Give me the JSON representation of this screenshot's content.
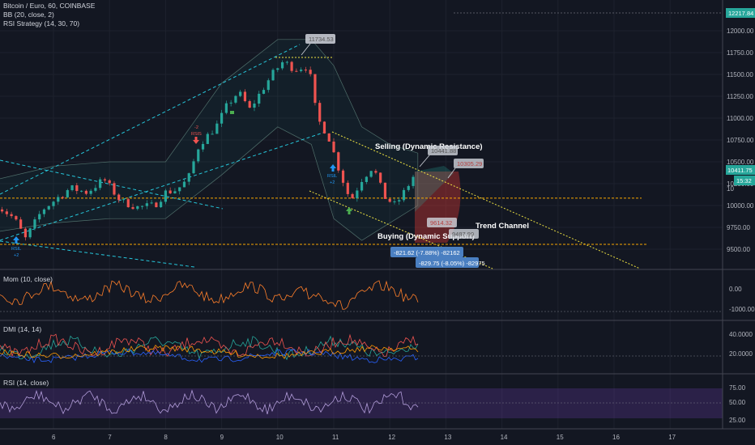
{
  "legend": {
    "symbol": "Bitcoin / Euro, 60, COINBASE",
    "bb": "BB (20, close, 2)",
    "rsi_strategy": "RSI Strategy (14, 30, 70)"
  },
  "panes": {
    "mom": "Mom (10, close)",
    "dmi": "DMI (14, 14)",
    "rsi": "RSI (14, close)"
  },
  "price_axis": {
    "top_badge": "12217.84",
    "ticks": [
      "12000.00",
      "11750.00",
      "11500.00",
      "11250.00",
      "11000.00",
      "10750.00",
      "10500.00",
      "10250.00",
      "10000.00",
      "9750.00",
      "9500.00"
    ],
    "current_price": "10411.75",
    "countdown": "15:32",
    "hidden_tick": "10"
  },
  "mom_axis": [
    "0.00",
    "-1000.00"
  ],
  "dmi_axis": [
    "40.0000",
    "20.0000"
  ],
  "rsi_axis": [
    "75.00",
    "50.00",
    "25.00"
  ],
  "time_axis": [
    "6",
    "7",
    "8",
    "9",
    "10",
    "11",
    "12",
    "13",
    "14",
    "15",
    "16",
    "17"
  ],
  "annotations": {
    "selling": "Selling (Dynamic Resistance)",
    "buying": "Buying (Dynamic Support)",
    "trend_channel": "Trend Channel"
  },
  "price_labels": {
    "high": "11734.53",
    "sell1": "10441.88",
    "sell2": "10305.29",
    "buy1": "9614.32",
    "buy2": "9487.99"
  },
  "measure": {
    "m1": "-821.62 (-7.88%) -82162",
    "m2": "-829.75 (-8.05%) -82975"
  },
  "signals": {
    "sell_label": "RSIS",
    "sell_count": "-2",
    "buy_label": "RSIL",
    "buy_count": "+2"
  },
  "colors": {
    "background": "#131722",
    "up": "#26a69a",
    "down": "#ef5350",
    "channel": "#26c6da",
    "trend": "#f0e442",
    "level": "#f7a600",
    "rsi_band": "#6a3cae",
    "blue_label": "#4a7fc1"
  },
  "chart_data": {
    "type": "candlestick",
    "symbol": "Bitcoin / Euro, 60, COINBASE",
    "x_ticks": [
      "6",
      "7",
      "8",
      "9",
      "10",
      "11",
      "12",
      "13",
      "14",
      "15",
      "16",
      "17"
    ],
    "y_ticks": [
      12000,
      11750,
      11500,
      11250,
      11000,
      10750,
      10500,
      10250,
      10000,
      9750,
      9500
    ],
    "ylim": [
      9350,
      12250
    ],
    "current_price": 10411.75,
    "price_path": [
      [
        5.0,
        10000
      ],
      [
        5.3,
        9850
      ],
      [
        5.5,
        9620
      ],
      [
        5.8,
        9950
      ],
      [
        6.0,
        10050
      ],
      [
        6.3,
        10200
      ],
      [
        6.6,
        10150
      ],
      [
        6.9,
        10300
      ],
      [
        7.2,
        10050
      ],
      [
        7.5,
        9980
      ],
      [
        7.8,
        10000
      ],
      [
        8.0,
        10150
      ],
      [
        8.2,
        10180
      ],
      [
        8.4,
        10300
      ],
      [
        8.6,
        10700
      ],
      [
        8.9,
        10900
      ],
      [
        9.1,
        11150
      ],
      [
        9.3,
        11300
      ],
      [
        9.5,
        11100
      ],
      [
        9.7,
        11300
      ],
      [
        9.9,
        11500
      ],
      [
        10.1,
        11650
      ],
      [
        10.3,
        11560
      ],
      [
        10.55,
        11600
      ],
      [
        10.7,
        11000
      ],
      [
        10.9,
        10800
      ],
      [
        11.1,
        10400
      ],
      [
        11.3,
        10050
      ],
      [
        11.5,
        10300
      ],
      [
        11.7,
        10450
      ],
      [
        11.9,
        10100
      ],
      [
        12.1,
        10000
      ],
      [
        12.3,
        10200
      ],
      [
        12.5,
        10420
      ]
    ],
    "bollinger_band": [
      [
        5.0,
        10300,
        9700
      ],
      [
        6.0,
        10450,
        9800
      ],
      [
        7.0,
        10500,
        9850
      ],
      [
        8.0,
        10500,
        9850
      ],
      [
        9.0,
        11400,
        10350
      ],
      [
        10.0,
        11900,
        10900
      ],
      [
        10.6,
        11900,
        10700
      ],
      [
        11.0,
        11600,
        9850
      ],
      [
        11.5,
        10900,
        9600
      ],
      [
        12.0,
        10700,
        9800
      ],
      [
        12.5,
        10600,
        10000
      ]
    ],
    "levels": [
      {
        "name": "level-1",
        "y": 10085
      },
      {
        "name": "level-2",
        "y": 9555
      }
    ],
    "mom": {
      "yticks": [
        0,
        -1000
      ],
      "ylim": [
        -1400,
        800
      ]
    },
    "dmi": {
      "yticks": [
        40,
        20
      ],
      "ylim": [
        8,
        52
      ]
    },
    "rsi": {
      "yticks": [
        75,
        50,
        25
      ],
      "ylim": [
        15,
        90
      ],
      "band": [
        30,
        70
      ]
    }
  }
}
